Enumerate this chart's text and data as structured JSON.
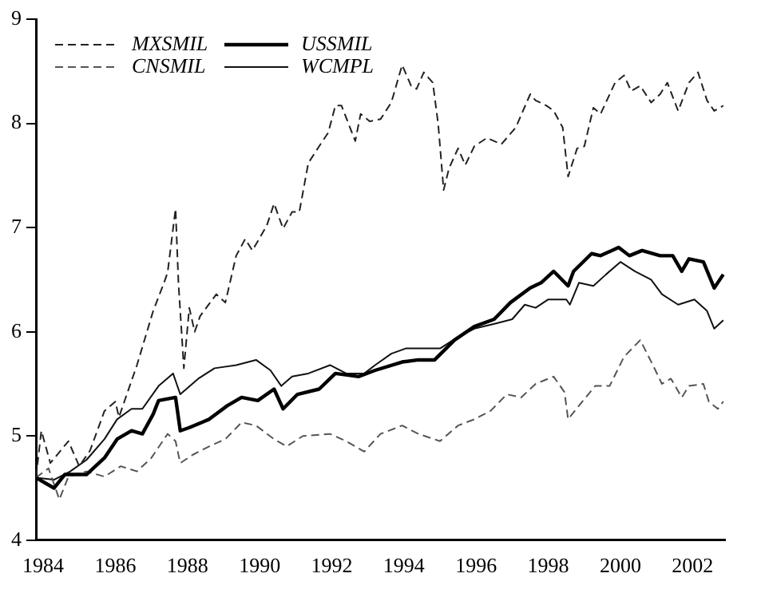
{
  "chart_data": {
    "type": "line",
    "xlim": [
      1983.8,
      2002.9
    ],
    "xticks": [
      1984,
      1986,
      1988,
      1990,
      1992,
      1994,
      1996,
      1998,
      2000,
      2002
    ],
    "ylim": [
      4,
      9
    ],
    "yticks": [
      4,
      5,
      6,
      7,
      8,
      9
    ],
    "grid": false,
    "legend": "top left",
    "marker": "none",
    "series": [
      {
        "name": "MXSMIL",
        "color": "#222222",
        "line_style": "dashed",
        "x": [
          1983.8,
          1983.95,
          1984.2,
          1984.7,
          1985.0,
          1985.3,
          1985.7,
          1986.0,
          1986.1,
          1986.6,
          1987.05,
          1987.35,
          1987.45,
          1987.67,
          1987.75,
          1987.9,
          1988.05,
          1988.2,
          1988.35,
          1988.8,
          1989.05,
          1989.35,
          1989.6,
          1989.8,
          1990.2,
          1990.4,
          1990.65,
          1990.9,
          1991.1,
          1991.35,
          1991.65,
          1991.9,
          1992.1,
          1992.27,
          1992.65,
          1992.8,
          1993.05,
          1993.35,
          1993.65,
          1993.95,
          1994.2,
          1994.35,
          1994.55,
          1994.8,
          1994.95,
          1995.1,
          1995.25,
          1995.5,
          1995.7,
          1995.95,
          1996.3,
          1996.7,
          1997.1,
          1997.5,
          1997.65,
          1997.95,
          1998.15,
          1998.4,
          1998.55,
          1998.8,
          1999.0,
          1999.25,
          1999.45,
          1999.85,
          2000.1,
          2000.3,
          2000.55,
          2000.85,
          2001.1,
          2001.3,
          2001.6,
          2001.9,
          2002.15,
          2002.4,
          2002.6,
          2002.85
        ],
        "values": [
          4.6,
          5.05,
          4.74,
          4.95,
          4.71,
          4.86,
          5.24,
          5.33,
          5.18,
          5.68,
          6.2,
          6.47,
          6.57,
          7.18,
          6.47,
          5.65,
          6.23,
          6.0,
          6.15,
          6.36,
          6.28,
          6.73,
          6.89,
          6.78,
          7.02,
          7.23,
          6.99,
          7.15,
          7.15,
          7.62,
          7.78,
          7.91,
          8.17,
          8.17,
          7.83,
          8.09,
          8.02,
          8.04,
          8.2,
          8.56,
          8.36,
          8.33,
          8.49,
          8.39,
          7.99,
          7.36,
          7.57,
          7.76,
          7.6,
          7.78,
          7.86,
          7.8,
          7.96,
          8.28,
          8.22,
          8.17,
          8.12,
          7.96,
          7.49,
          7.76,
          7.78,
          8.15,
          8.09,
          8.39,
          8.46,
          8.31,
          8.36,
          8.2,
          8.28,
          8.39,
          8.12,
          8.39,
          8.49,
          8.22,
          8.12,
          8.17
        ]
      },
      {
        "name": "USSMIL",
        "color": "#000000",
        "line_style": "solid",
        "x": [
          1983.8,
          1984.3,
          1984.6,
          1985.2,
          1985.7,
          1986.05,
          1986.45,
          1986.75,
          1987.05,
          1987.2,
          1987.67,
          1987.8,
          1988.05,
          1988.6,
          1989.1,
          1989.5,
          1989.95,
          1990.4,
          1990.65,
          1991.05,
          1991.65,
          1992.1,
          1992.75,
          1993.2,
          1993.95,
          1994.4,
          1994.85,
          1995.4,
          1995.95,
          1996.5,
          1996.95,
          1997.5,
          1997.8,
          1998.15,
          1998.55,
          1998.7,
          1999.2,
          1999.45,
          1999.95,
          2000.25,
          2000.6,
          2001.1,
          2001.45,
          2001.7,
          2001.9,
          2002.3,
          2002.6,
          2002.85
        ],
        "values": [
          4.6,
          4.5,
          4.63,
          4.63,
          4.79,
          4.97,
          5.05,
          5.02,
          5.21,
          5.34,
          5.37,
          5.05,
          5.08,
          5.16,
          5.29,
          5.37,
          5.34,
          5.45,
          5.26,
          5.4,
          5.45,
          5.6,
          5.57,
          5.63,
          5.71,
          5.73,
          5.73,
          5.92,
          6.05,
          6.12,
          6.28,
          6.42,
          6.47,
          6.58,
          6.44,
          6.58,
          6.75,
          6.73,
          6.81,
          6.73,
          6.78,
          6.73,
          6.73,
          6.58,
          6.7,
          6.67,
          6.42,
          6.55
        ]
      },
      {
        "name": "CNSMIL",
        "color": "#555555",
        "line_style": "dashed",
        "x": [
          1983.8,
          1984.15,
          1984.45,
          1984.7,
          1985.2,
          1985.7,
          1986.15,
          1986.6,
          1987.0,
          1987.45,
          1987.67,
          1987.8,
          1988.15,
          1988.6,
          1989.05,
          1989.5,
          1989.9,
          1990.4,
          1990.75,
          1991.2,
          1991.95,
          1992.4,
          1992.9,
          1993.35,
          1993.95,
          1994.4,
          1995.0,
          1995.5,
          1995.95,
          1996.4,
          1996.85,
          1997.25,
          1997.65,
          1998.15,
          1998.45,
          1998.55,
          1998.85,
          1999.3,
          1999.7,
          2000.1,
          2000.55,
          2000.9,
          2001.15,
          2001.4,
          2001.7,
          2001.9,
          2002.3,
          2002.45,
          2002.7,
          2002.85
        ],
        "values": [
          4.6,
          4.69,
          4.39,
          4.61,
          4.66,
          4.61,
          4.71,
          4.66,
          4.79,
          5.02,
          4.95,
          4.74,
          4.82,
          4.9,
          4.97,
          5.13,
          5.1,
          4.97,
          4.9,
          5.0,
          5.02,
          4.95,
          4.85,
          5.02,
          5.1,
          5.02,
          4.95,
          5.1,
          5.16,
          5.24,
          5.4,
          5.37,
          5.5,
          5.57,
          5.42,
          5.16,
          5.29,
          5.48,
          5.48,
          5.76,
          5.92,
          5.68,
          5.5,
          5.55,
          5.37,
          5.48,
          5.5,
          5.33,
          5.26,
          5.33
        ]
      },
      {
        "name": "WCMPL",
        "color": "#111111",
        "line_style": "solid",
        "x": [
          1983.8,
          1984.3,
          1984.75,
          1985.2,
          1985.7,
          1986.05,
          1986.45,
          1986.75,
          1987.2,
          1987.6,
          1987.8,
          1988.3,
          1988.75,
          1989.35,
          1989.9,
          1990.3,
          1990.6,
          1990.9,
          1991.35,
          1991.95,
          1992.4,
          1992.9,
          1993.2,
          1993.65,
          1994.05,
          1994.55,
          1995.0,
          1995.5,
          1995.95,
          1996.55,
          1997.0,
          1997.35,
          1997.65,
          1998.0,
          1998.5,
          1998.6,
          1998.85,
          1999.25,
          1999.6,
          2000.0,
          2000.4,
          2000.85,
          2001.15,
          2001.6,
          2002.05,
          2002.4,
          2002.6,
          2002.85
        ],
        "values": [
          4.6,
          4.58,
          4.66,
          4.77,
          4.97,
          5.16,
          5.26,
          5.26,
          5.48,
          5.6,
          5.4,
          5.55,
          5.65,
          5.68,
          5.73,
          5.63,
          5.48,
          5.57,
          5.6,
          5.68,
          5.6,
          5.6,
          5.68,
          5.79,
          5.84,
          5.84,
          5.84,
          5.95,
          6.03,
          6.08,
          6.12,
          6.26,
          6.23,
          6.31,
          6.31,
          6.26,
          6.47,
          6.44,
          6.55,
          6.67,
          6.58,
          6.5,
          6.36,
          6.26,
          6.31,
          6.2,
          6.03,
          6.11
        ]
      }
    ]
  }
}
